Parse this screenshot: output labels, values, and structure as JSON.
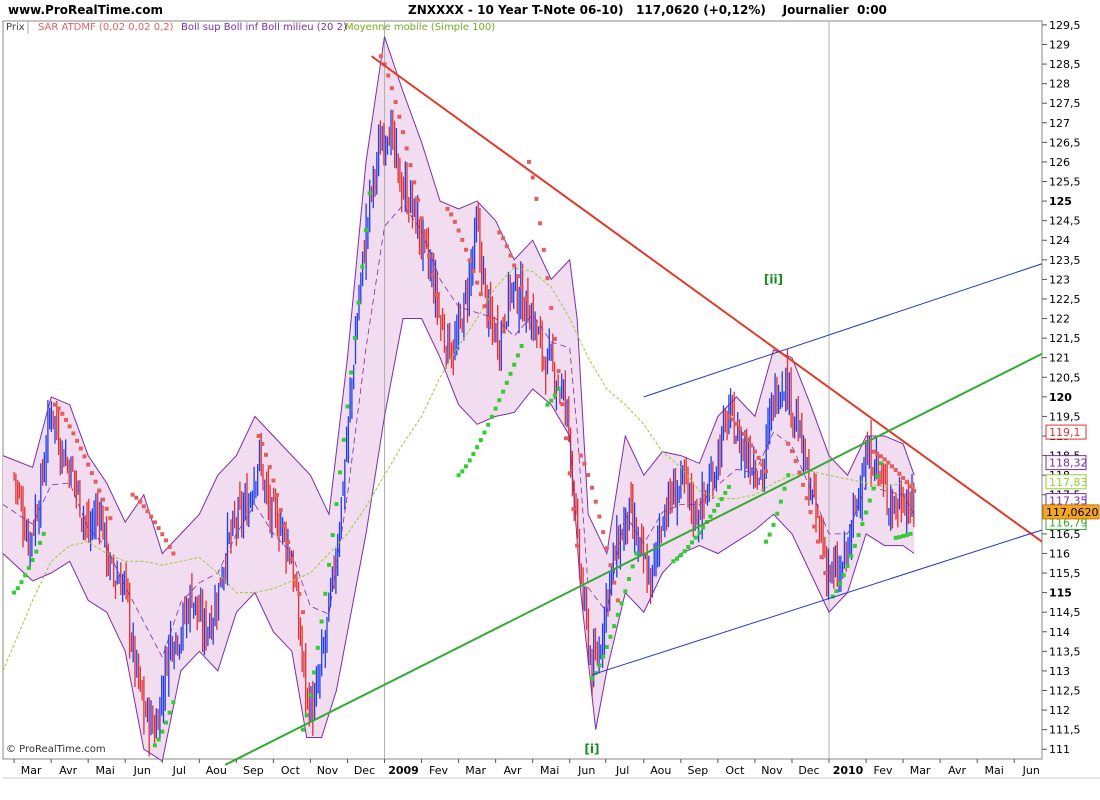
{
  "header": {
    "site": "www.ProRealTime.com",
    "symbol": "ZNXXXX - 10 Year T-Note 06-10)",
    "last": "117,0620 (+0,12%)",
    "period": "Journalier  0:00"
  },
  "legend": {
    "prix": "Prix",
    "sar": "SAR ATDMF (0,02 0,02 0,2)",
    "boll": "Boll sup Boll inf Boll milieu (20 2)",
    "ma": "Moyenne mobile (Simple 100)"
  },
  "copyright": "© ProRealTime.com",
  "colors": {
    "up_bar": "#1f3ee8",
    "down_bar": "#e03030",
    "sar_above": "#e06060",
    "sar_below": "#33cc33",
    "boll_band": "#7a2ea8",
    "boll_fill": "#f2dcef",
    "ma": "#99cc33",
    "trend_red": "#e03a2a",
    "trend_green": "#33aa33",
    "trend_blue": "#2233cc"
  },
  "chart_data": {
    "type": "ohlc",
    "title": "ZNXXXX - 10 Year T-Note 06-10)",
    "y_range": [
      110.75,
      129.6
    ],
    "y_ticks": [
      "129,5",
      "129",
      "128,5",
      "128",
      "127,5",
      "127",
      "126,5",
      "126",
      "125,5",
      "125",
      "124,5",
      "124",
      "123,5",
      "123",
      "122,5",
      "122",
      "121,5",
      "121",
      "120,5",
      "120",
      "119,5",
      "119",
      "118,5",
      "118",
      "117,5",
      "117",
      "116,5",
      "116",
      "115,5",
      "115",
      "114,5",
      "114",
      "113,5",
      "113",
      "112,5",
      "112",
      "111,5",
      "111"
    ],
    "y_tick_values": [
      129.5,
      129,
      128.5,
      128,
      127.5,
      127,
      126.5,
      126,
      125.5,
      125,
      124.5,
      124,
      123.5,
      123,
      122.5,
      122,
      121.5,
      121,
      120.5,
      120,
      119.5,
      119,
      118.5,
      118,
      117.5,
      117,
      116.5,
      116,
      115.5,
      115,
      114.5,
      114,
      113.5,
      113,
      112.5,
      112,
      111.5,
      111
    ],
    "bold_ticks": [
      "125",
      "120",
      "115"
    ],
    "x_labels": [
      "Mar",
      "Avr",
      "Mai",
      "Jun",
      "Jul",
      "Aou",
      "Sep",
      "Oct",
      "Nov",
      "Dec",
      "2009",
      "Fev",
      "Mar",
      "Avr",
      "Mai",
      "Jun",
      "Jul",
      "Aou",
      "Sep",
      "Oct",
      "Nov",
      "Dec",
      "2010",
      "Fev",
      "Mar",
      "Avr",
      "Mai",
      "Jun"
    ],
    "x_months": [
      0,
      1,
      2,
      3,
      4,
      5,
      6,
      7,
      8,
      9,
      10,
      11,
      12,
      13,
      14,
      15,
      15.97,
      17,
      18,
      19,
      20,
      21,
      22,
      23,
      24,
      25,
      26,
      27
    ],
    "x_range_months": [
      -0.3,
      27.75
    ],
    "year_markers": [
      10,
      22
    ],
    "price_path": [
      [
        0,
        118.0
      ],
      [
        0.4,
        116.3
      ],
      [
        0.7,
        117.5
      ],
      [
        1.0,
        119.8
      ],
      [
        1.3,
        118.6
      ],
      [
        1.6,
        118.0
      ],
      [
        2.0,
        116.5
      ],
      [
        2.3,
        117.2
      ],
      [
        2.6,
        115.5
      ],
      [
        3.0,
        115.2
      ],
      [
        3.2,
        113.5
      ],
      [
        3.5,
        112.0
      ],
      [
        3.8,
        111.5
      ],
      [
        4.0,
        112.5
      ],
      [
        4.2,
        113.8
      ],
      [
        4.5,
        114.0
      ],
      [
        4.8,
        115.0
      ],
      [
        5.1,
        114.0
      ],
      [
        5.4,
        114.5
      ],
      [
        5.7,
        116.0
      ],
      [
        6.0,
        116.8
      ],
      [
        6.3,
        117.2
      ],
      [
        6.6,
        118.5
      ],
      [
        6.9,
        117.0
      ],
      [
        7.2,
        116.8
      ],
      [
        7.5,
        115.8
      ],
      [
        7.9,
        112.3
      ],
      [
        8.1,
        112.0
      ],
      [
        8.4,
        113.8
      ],
      [
        8.7,
        116.0
      ],
      [
        9.0,
        119.0
      ],
      [
        9.3,
        122.5
      ],
      [
        9.6,
        125.0
      ],
      [
        9.9,
        126.5
      ],
      [
        10.1,
        127.0
      ],
      [
        10.4,
        125.5
      ],
      [
        10.7,
        125.0
      ],
      [
        11.0,
        124.0
      ],
      [
        11.3,
        123.0
      ],
      [
        11.6,
        121.5
      ],
      [
        11.9,
        121.2
      ],
      [
        12.2,
        122.5
      ],
      [
        12.5,
        124.3
      ],
      [
        12.8,
        122.0
      ],
      [
        13.1,
        121.5
      ],
      [
        13.4,
        122.8
      ],
      [
        13.7,
        122.5
      ],
      [
        14.0,
        122.0
      ],
      [
        14.3,
        121.0
      ],
      [
        14.6,
        120.6
      ],
      [
        14.9,
        119.8
      ],
      [
        15.0,
        119.0
      ],
      [
        15.2,
        116.3
      ],
      [
        15.4,
        114.5
      ],
      [
        15.6,
        113.0
      ],
      [
        15.8,
        113.5
      ],
      [
        16.0,
        115.0
      ],
      [
        16.3,
        116.2
      ],
      [
        16.6,
        117.0
      ],
      [
        16.9,
        116.0
      ],
      [
        17.2,
        115.2
      ],
      [
        17.5,
        117.0
      ],
      [
        17.8,
        117.5
      ],
      [
        18.1,
        117.8
      ],
      [
        18.4,
        117.0
      ],
      [
        18.7,
        117.5
      ],
      [
        19.0,
        118.5
      ],
      [
        19.3,
        119.6
      ],
      [
        19.6,
        118.8
      ],
      [
        19.9,
        118.4
      ],
      [
        20.2,
        118.0
      ],
      [
        20.5,
        120.0
      ],
      [
        20.8,
        120.5
      ],
      [
        21.1,
        119.5
      ],
      [
        21.4,
        118.0
      ],
      [
        21.7,
        116.8
      ],
      [
        22.0,
        115.5
      ],
      [
        22.3,
        115.4
      ],
      [
        22.6,
        116.5
      ],
      [
        22.9,
        118.2
      ],
      [
        23.2,
        118.5
      ],
      [
        23.5,
        117.6
      ],
      [
        23.8,
        117.2
      ],
      [
        24.0,
        117.5
      ],
      [
        24.3,
        117.06
      ]
    ],
    "sar_above_segments": [
      {
        "m0": 1.1,
        "m1": 2.6,
        "v0": 119.8,
        "v1": 116.9
      },
      {
        "m0": 3.2,
        "m1": 4.3,
        "v0": 117.5,
        "v1": 116.0
      },
      {
        "m0": 6.6,
        "m1": 7.8,
        "v0": 119.0,
        "v1": 114.5
      },
      {
        "m0": 9.9,
        "m1": 11.4,
        "v0": 128.7,
        "v1": 122.6
      },
      {
        "m0": 11.7,
        "m1": 12.8,
        "v0": 124.8,
        "v1": 122.0
      },
      {
        "m0": 13.1,
        "m1": 13.8,
        "v0": 124.2,
        "v1": 122.5
      },
      {
        "m0": 13.9,
        "m1": 15.2,
        "v0": 126.0,
        "v1": 116.2
      },
      {
        "m0": 15.3,
        "m1": 16.3,
        "v0": 118.5,
        "v1": 114.8
      },
      {
        "m0": 19.3,
        "m1": 20.3,
        "v0": 119.5,
        "v1": 118.1
      },
      {
        "m0": 20.9,
        "m1": 21.9,
        "v0": 118.8,
        "v1": 115.5
      },
      {
        "m0": 23.2,
        "m1": 24.3,
        "v0": 118.6,
        "v1": 117.6
      }
    ],
    "sar_below_segments": [
      {
        "m0": 0.0,
        "m1": 0.8,
        "v0": 115.0,
        "v1": 116.5
      },
      {
        "m0": 3.8,
        "m1": 4.3,
        "v0": 111.1,
        "v1": 112.2
      },
      {
        "m0": 7.8,
        "m1": 9.6,
        "v0": 111.5,
        "v1": 125.2
      },
      {
        "m0": 12.0,
        "m1": 13.7,
        "v0": 118.0,
        "v1": 121.3
      },
      {
        "m0": 14.4,
        "m1": 14.7,
        "v0": 119.8,
        "v1": 120.2
      },
      {
        "m0": 15.6,
        "m1": 16.8,
        "v0": 112.8,
        "v1": 116.0
      },
      {
        "m0": 17.8,
        "m1": 19.3,
        "v0": 115.8,
        "v1": 117.7
      },
      {
        "m0": 20.3,
        "m1": 20.9,
        "v0": 116.3,
        "v1": 118.0
      },
      {
        "m0": 22.1,
        "m1": 23.4,
        "v0": 114.9,
        "v1": 118.3
      },
      {
        "m0": 23.8,
        "m1": 24.2,
        "v0": 116.4,
        "v1": 116.5
      }
    ],
    "boll_upper": [
      [
        -0.3,
        118.5
      ],
      [
        0.5,
        118.2
      ],
      [
        1.0,
        120.0
      ],
      [
        1.5,
        119.8
      ],
      [
        2.0,
        118.5
      ],
      [
        2.5,
        117.8
      ],
      [
        3.0,
        116.8
      ],
      [
        3.5,
        117.5
      ],
      [
        4.0,
        116.0
      ],
      [
        4.5,
        116.5
      ],
      [
        5.0,
        117.0
      ],
      [
        5.5,
        118.0
      ],
      [
        6.0,
        118.5
      ],
      [
        6.5,
        119.5
      ],
      [
        7.0,
        119.0
      ],
      [
        7.5,
        118.5
      ],
      [
        8.0,
        118.0
      ],
      [
        8.5,
        117.0
      ],
      [
        9.0,
        121.0
      ],
      [
        9.5,
        126.0
      ],
      [
        10.0,
        129.2
      ],
      [
        10.5,
        127.8
      ],
      [
        11.0,
        126.5
      ],
      [
        11.5,
        125.0
      ],
      [
        12.0,
        124.8
      ],
      [
        12.5,
        125.0
      ],
      [
        13.0,
        124.5
      ],
      [
        13.5,
        123.5
      ],
      [
        14.0,
        124.0
      ],
      [
        14.5,
        123.0
      ],
      [
        15.0,
        123.5
      ],
      [
        15.2,
        122.0
      ],
      [
        15.5,
        117.0
      ],
      [
        16.0,
        116.0
      ],
      [
        16.5,
        119.0
      ],
      [
        17.0,
        118.0
      ],
      [
        17.5,
        118.6
      ],
      [
        18.0,
        118.5
      ],
      [
        18.5,
        118.3
      ],
      [
        19.0,
        119.5
      ],
      [
        19.5,
        120.0
      ],
      [
        20.0,
        119.5
      ],
      [
        20.5,
        121.2
      ],
      [
        21.0,
        121.0
      ],
      [
        21.5,
        119.8
      ],
      [
        22.0,
        118.5
      ],
      [
        22.5,
        118.0
      ],
      [
        23.0,
        119.0
      ],
      [
        23.5,
        119.0
      ],
      [
        24.0,
        118.8
      ],
      [
        24.3,
        118.0
      ]
    ],
    "boll_lower": [
      [
        -0.3,
        116.0
      ],
      [
        0.5,
        115.3
      ],
      [
        1.0,
        115.5
      ],
      [
        1.5,
        115.8
      ],
      [
        2.0,
        114.8
      ],
      [
        2.5,
        114.5
      ],
      [
        3.0,
        113.5
      ],
      [
        3.5,
        111.0
      ],
      [
        4.0,
        110.7
      ],
      [
        4.5,
        113.0
      ],
      [
        5.0,
        113.5
      ],
      [
        5.5,
        113.0
      ],
      [
        6.0,
        114.5
      ],
      [
        6.5,
        115.0
      ],
      [
        7.0,
        114.0
      ],
      [
        7.5,
        113.5
      ],
      [
        7.9,
        111.3
      ],
      [
        8.3,
        111.3
      ],
      [
        8.7,
        112.5
      ],
      [
        9.0,
        114.0
      ],
      [
        9.5,
        116.5
      ],
      [
        10.0,
        119.5
      ],
      [
        10.5,
        122.0
      ],
      [
        11.0,
        122.0
      ],
      [
        11.5,
        121.0
      ],
      [
        12.0,
        119.8
      ],
      [
        12.5,
        119.3
      ],
      [
        13.0,
        119.5
      ],
      [
        13.5,
        119.6
      ],
      [
        14.0,
        120.2
      ],
      [
        14.5,
        119.8
      ],
      [
        15.0,
        119.0
      ],
      [
        15.3,
        115.0
      ],
      [
        15.7,
        111.5
      ],
      [
        16.0,
        113.0
      ],
      [
        16.5,
        115.0
      ],
      [
        17.0,
        114.5
      ],
      [
        17.5,
        115.5
      ],
      [
        18.0,
        116.0
      ],
      [
        18.5,
        116.2
      ],
      [
        19.0,
        116.0
      ],
      [
        19.5,
        116.3
      ],
      [
        20.0,
        116.6
      ],
      [
        20.5,
        117.0
      ],
      [
        21.0,
        116.5
      ],
      [
        21.5,
        115.5
      ],
      [
        22.0,
        114.5
      ],
      [
        22.5,
        115.0
      ],
      [
        23.0,
        116.5
      ],
      [
        23.5,
        116.2
      ],
      [
        24.0,
        116.2
      ],
      [
        24.3,
        116.0
      ]
    ],
    "ma100": [
      [
        -0.3,
        113.0
      ],
      [
        0.5,
        114.8
      ],
      [
        1.0,
        115.8
      ],
      [
        1.5,
        116.2
      ],
      [
        2.0,
        116.3
      ],
      [
        2.5,
        116.0
      ],
      [
        3.0,
        115.8
      ],
      [
        3.5,
        115.8
      ],
      [
        4.0,
        115.7
      ],
      [
        4.5,
        115.8
      ],
      [
        5.0,
        115.9
      ],
      [
        5.5,
        115.5
      ],
      [
        6.0,
        115.0
      ],
      [
        6.5,
        115.0
      ],
      [
        7.0,
        115.1
      ],
      [
        7.5,
        115.3
      ],
      [
        8.0,
        115.5
      ],
      [
        8.5,
        116.0
      ],
      [
        9.0,
        116.5
      ],
      [
        9.5,
        117.2
      ],
      [
        10.0,
        118.0
      ],
      [
        10.5,
        118.8
      ],
      [
        11.0,
        119.5
      ],
      [
        11.5,
        120.5
      ],
      [
        12.0,
        121.3
      ],
      [
        12.5,
        122.0
      ],
      [
        13.0,
        122.8
      ],
      [
        13.5,
        123.3
      ],
      [
        14.0,
        123.2
      ],
      [
        14.5,
        122.8
      ],
      [
        15.0,
        122.0
      ],
      [
        15.5,
        121.0
      ],
      [
        16.0,
        120.2
      ],
      [
        16.5,
        119.8
      ],
      [
        17.0,
        119.3
      ],
      [
        17.5,
        118.6
      ],
      [
        18.0,
        118.2
      ],
      [
        18.5,
        117.6
      ],
      [
        19.0,
        117.4
      ],
      [
        19.5,
        117.4
      ],
      [
        20.0,
        117.5
      ],
      [
        20.5,
        117.8
      ],
      [
        21.0,
        118.0
      ],
      [
        21.5,
        118.1
      ],
      [
        22.0,
        118.0
      ],
      [
        22.5,
        117.9
      ],
      [
        23.0,
        117.8
      ],
      [
        23.5,
        117.7
      ],
      [
        24.0,
        117.8
      ],
      [
        24.3,
        117.8
      ]
    ],
    "trendlines": [
      {
        "name": "red",
        "color": "#e03a2a",
        "from": [
          9.65,
          128.7
        ],
        "to": [
          27.75,
          116.3
        ]
      },
      {
        "name": "green",
        "color": "#33aa33",
        "from": [
          5.7,
          110.6
        ],
        "to": [
          27.75,
          121.1
        ]
      },
      {
        "name": "blue-upper",
        "color": "#2233cc",
        "from": [
          17.0,
          120.0
        ],
        "to": [
          27.75,
          123.4
        ]
      },
      {
        "name": "blue-lower",
        "color": "#2233cc",
        "from": [
          15.6,
          112.9
        ],
        "to": [
          27.75,
          116.6
        ]
      }
    ],
    "wave_labels": [
      {
        "text": "[i]",
        "m": 15.6,
        "v": 111.0
      },
      {
        "text": "[ii]",
        "m": 20.5,
        "v": 123.0
      }
    ],
    "price_markers": [
      {
        "text": "119,1",
        "v": 119.1,
        "bg": "#ffffff",
        "fg": "#e03030",
        "border": "#e03030"
      },
      {
        "text": "118,32",
        "v": 118.32,
        "bg": "#ffffff",
        "fg": "#7a2ea8",
        "border": "#7a2ea8"
      },
      {
        "text": "117,83",
        "v": 117.83,
        "bg": "#ffffff",
        "fg": "#99cc33",
        "border": "#99cc33"
      },
      {
        "text": "117,35",
        "v": 117.35,
        "bg": "#ffffff",
        "fg": "#7a2ea8",
        "border": "#7a2ea8"
      },
      {
        "text": "116,79",
        "v": 116.79,
        "bg": "#ffffff",
        "fg": "#33aa33",
        "border": "#33aa33"
      },
      {
        "text": "117,0620",
        "v": 117.062,
        "bg": "#f5a623",
        "fg": "#000000",
        "border": "#c07a10"
      }
    ]
  }
}
